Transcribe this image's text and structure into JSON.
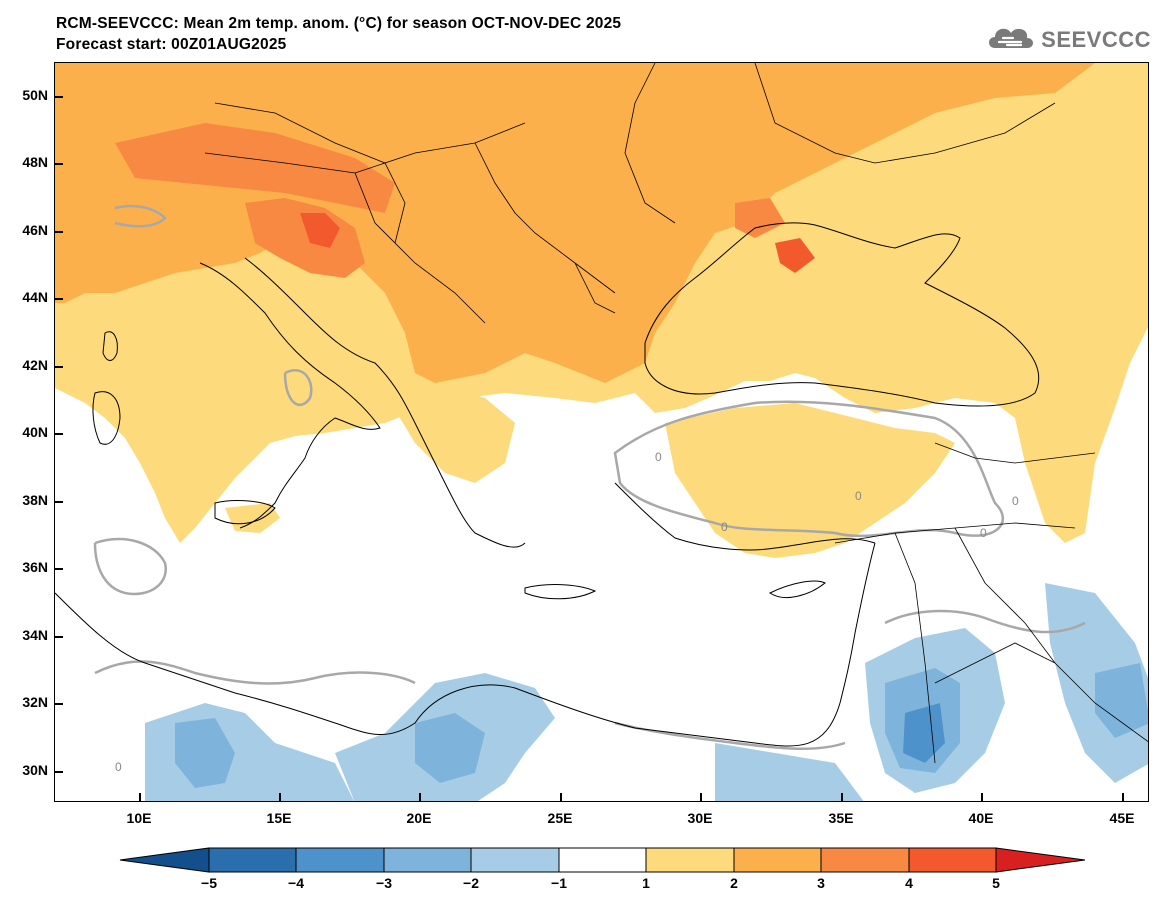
{
  "header": {
    "title_line1": "RCM-SEEVCCC: Mean 2m temp. anom. (°C) for season OCT-NOV-DEC 2025",
    "title_line2": "Forecast start: 00Z01AUG2025"
  },
  "logo": {
    "text": "SEEVCCC",
    "icon": "cloud-logo-icon",
    "color": "#7a7a7a"
  },
  "map": {
    "lon_range": [
      7,
      46
    ],
    "lat_range": [
      29,
      51
    ],
    "lat_ticks": [
      "50N",
      "48N",
      "46N",
      "44N",
      "42N",
      "40N",
      "38N",
      "36N",
      "34N",
      "32N",
      "30N"
    ],
    "lon_ticks": [
      "10E",
      "15E",
      "20E",
      "25E",
      "30E",
      "35E",
      "40E",
      "45E"
    ],
    "contour_label": "0",
    "sea_color": "#ffffff"
  },
  "colorbar": {
    "bounds": [
      "−5",
      "−4",
      "−3",
      "−2",
      "−1",
      "1",
      "2",
      "3",
      "4",
      "5"
    ],
    "colors": [
      "#134f8c",
      "#2b6ead",
      "#4e92cc",
      "#7eb4dc",
      "#a6cde5",
      "#ffffff",
      "#fdda7b",
      "#fbb04c",
      "#f78943",
      "#f25a2d",
      "#d92020"
    ]
  }
}
